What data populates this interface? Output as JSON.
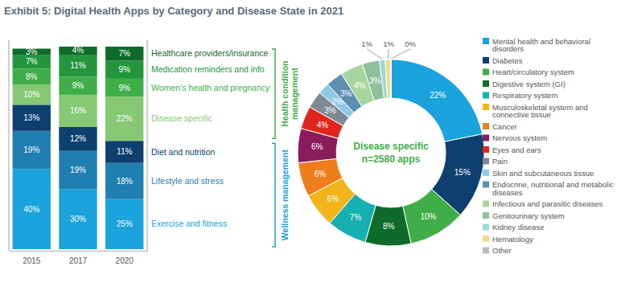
{
  "title": "Exhibit 5: Digital Health Apps by Category and Disease State in 2021",
  "chart_data": [
    {
      "type": "bar",
      "stacked": true,
      "data_labels": true,
      "tick_labels": "x",
      "categories": [
        "2015",
        "2017",
        "2020"
      ],
      "series": [
        {
          "name": "Exercise and fitness",
          "color": "#1aa3dc",
          "values": [
            40,
            30,
            25
          ],
          "value_labels": [
            "40%",
            "30%",
            "25%"
          ]
        },
        {
          "name": "Lifestyle and stress",
          "color": "#1f7fb0",
          "values": [
            19,
            19,
            18
          ],
          "value_labels": [
            "19%",
            "19%",
            "18%"
          ]
        },
        {
          "name": "Diet and nutrition",
          "color": "#0d3f6f",
          "values": [
            13,
            12,
            11
          ],
          "value_labels": [
            "13%",
            "12%",
            "11%"
          ]
        },
        {
          "name": "Disease specific",
          "color": "#86c873",
          "values": [
            10,
            16,
            22
          ],
          "value_labels": [
            "10%",
            "16%",
            "22%"
          ]
        },
        {
          "name": "Women’s health and pregnancy",
          "color": "#3fae49",
          "values": [
            8,
            9,
            9
          ],
          "value_labels": [
            "8%",
            "9%",
            "9%"
          ]
        },
        {
          "name": "Medication reminders and info",
          "color": "#23963d",
          "values": [
            7,
            11,
            9
          ],
          "value_labels": [
            "7%",
            "11%",
            "9%"
          ]
        },
        {
          "name": "Healthcare providers/insurance",
          "color": "#0f6b2a",
          "values": [
            3,
            4,
            7
          ],
          "value_labels": [
            "3%",
            "4%",
            "7%"
          ]
        }
      ],
      "groups": [
        {
          "label": "Health condition management",
          "color": "#3fae49",
          "series": [
            "Disease specific",
            "Women’s health and pregnancy",
            "Medication reminders and info",
            "Healthcare providers/insurance"
          ]
        },
        {
          "label": "Wellness management",
          "color": "#1aa3dc",
          "series": [
            "Exercise and fitness",
            "Lifestyle and stress",
            "Diet and nutrition"
          ]
        }
      ]
    },
    {
      "type": "pie",
      "title": "Disease specific",
      "subtitle": "n=2580 apps",
      "data_labels": true,
      "legend": "right",
      "categories": [
        "Mental health and behavioral disorders",
        "Diabetes",
        "Heart/circulatory system",
        "Digestive system (GI)",
        "Respiratory system",
        "Musculoskeletal system and connective tissue",
        "Cancer",
        "Nervous system",
        "Eyes and ears",
        "Pain",
        "Skin and subcutaneous tissue",
        "Endocrine, nutritional and metabolic diseases",
        "Infectious and parasitic diseases",
        "Genitourinary system",
        "Kidney disease",
        "Hematology",
        "Other"
      ],
      "values": [
        22,
        15,
        10,
        8,
        7,
        6,
        6,
        6,
        4,
        3,
        2,
        3,
        4,
        3,
        1,
        1,
        0
      ],
      "value_labels": [
        "22%",
        "15%",
        "10%",
        "8%",
        "7%",
        "6%",
        "6%",
        "6%",
        "4%",
        "3%",
        "2%",
        "3%",
        "4%",
        "3%",
        "1%",
        "1%",
        "0%"
      ],
      "colors": [
        "#1aa3dc",
        "#0d3f6f",
        "#3fae49",
        "#0f6b2a",
        "#17b0b0",
        "#f2b418",
        "#ee7d1c",
        "#8a1c5c",
        "#e0261c",
        "#7d8a96",
        "#8fc8e8",
        "#5b8fb3",
        "#a8d59e",
        "#8fbf9c",
        "#9ad9d4",
        "#f6d98a",
        "#bbbbbb"
      ]
    }
  ]
}
